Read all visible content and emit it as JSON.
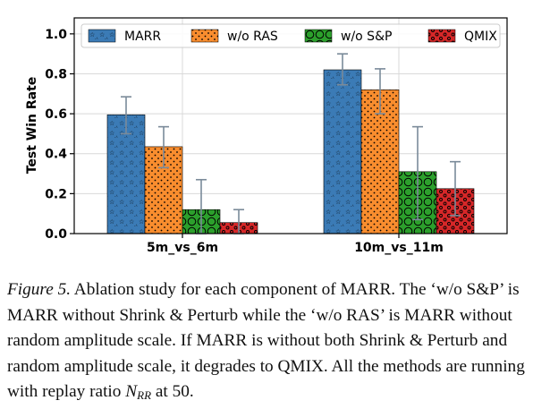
{
  "chart_data": {
    "type": "bar",
    "ylabel": "Test Win Rate",
    "ylim": [
      0.0,
      1.08
    ],
    "yticks": [
      "0.0",
      "0.2",
      "0.4",
      "0.6",
      "0.8",
      "1.0"
    ],
    "categories": [
      "5m_vs_6m",
      "10m_vs_11m"
    ],
    "legend_position": "top",
    "grid": true,
    "series": [
      {
        "name": "MARR",
        "color": "#3b7bb6",
        "hatch": "stars",
        "values": [
          0.595,
          0.82
        ],
        "err_low": [
          0.5,
          0.745
        ],
        "err_high": [
          0.685,
          0.9
        ]
      },
      {
        "name": "w/o RAS",
        "color": "#f98d2e",
        "hatch": "dots",
        "values": [
          0.435,
          0.72
        ],
        "err_low": [
          0.33,
          0.6
        ],
        "err_high": [
          0.535,
          0.825
        ]
      },
      {
        "name": "w/o S&P",
        "color": "#2ca02c",
        "hatch": "circles",
        "values": [
          0.12,
          0.31
        ],
        "err_low": [
          0.0,
          0.07
        ],
        "err_high": [
          0.27,
          0.535
        ]
      },
      {
        "name": "QMIX",
        "color": "#d62728",
        "hatch": "small-circles",
        "values": [
          0.055,
          0.225
        ],
        "err_low": [
          0.0,
          0.09
        ],
        "err_high": [
          0.12,
          0.36
        ]
      }
    ]
  },
  "caption": {
    "label": "Figure 5.",
    "text1": " Ablation study for each component of MARR. The ‘w/o S&P’ is MARR without Shrink & Perturb while the ‘w/o RAS’ is MARR without random amplitude scale. If MARR is without both Shrink & Perturb and random amplitude scale, it degrades to QMIX. All the methods are running with replay ratio ",
    "math_base": "N",
    "math_sub": "RR",
    "text2": " at 50."
  }
}
